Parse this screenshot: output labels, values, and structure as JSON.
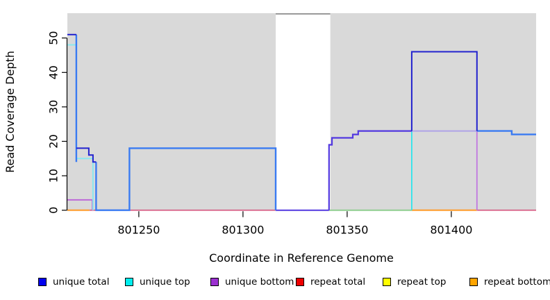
{
  "chart_data": {
    "type": "step-line-coverage",
    "title": "",
    "xlabel": "Coordinate in Reference Genome",
    "ylabel": "Read Coverage Depth",
    "xlim": [
      801215.7,
      801440.7
    ],
    "ylim": [
      0,
      57.2
    ],
    "x_ticks": [
      801250,
      801300,
      801350,
      801400
    ],
    "x_tick_labels": [
      "801250",
      "801300",
      "801350",
      "801400"
    ],
    "y_ticks": [
      0,
      10,
      20,
      30,
      40,
      50
    ],
    "y_tick_labels": [
      "0",
      "10",
      "20",
      "30",
      "40",
      "50"
    ],
    "grid": false,
    "legend_position": "bottom",
    "background_regions": [
      {
        "name": "covered-region-left",
        "x1": 801215.7,
        "x2": 801315.7,
        "color": "#D9D9D9"
      },
      {
        "name": "covered-region-right",
        "x1": 801341.9,
        "x2": 801440.7,
        "color": "#D9D9D9"
      },
      {
        "name": "alignment-gap",
        "x1": 801315.7,
        "x2": 801341.9,
        "color": "#FFFFFF",
        "top_bar_color": "#999999"
      }
    ],
    "legend": [
      {
        "label": "unique total",
        "color": "#0000EE"
      },
      {
        "label": "unique top",
        "color": "#00EEEE"
      },
      {
        "label": "unique bottom",
        "color": "#9B30D0"
      },
      {
        "label": "repeat total",
        "color": "#EE0000"
      },
      {
        "label": "repeat top",
        "color": "#FFFF00"
      },
      {
        "label": "repeat bottom",
        "color": "#FFA500"
      }
    ],
    "series": [
      {
        "name": "unique total",
        "steps": [
          [
            801216,
            51
          ],
          [
            801220,
            18
          ],
          [
            801226,
            16
          ],
          [
            801228,
            14
          ],
          [
            801229,
            0
          ],
          [
            801245,
            18
          ],
          [
            801316,
            0
          ],
          [
            801341,
            19
          ],
          [
            801343,
            21
          ],
          [
            801353,
            22
          ],
          [
            801355,
            23
          ],
          [
            801381,
            46
          ],
          [
            801412,
            23
          ],
          [
            801429,
            22
          ],
          [
            801441,
            22
          ]
        ]
      },
      {
        "name": "unique top",
        "steps": [
          [
            801216,
            48
          ],
          [
            801220,
            15
          ],
          [
            801228,
            0
          ],
          [
            801381,
            23
          ],
          [
            801412,
            0
          ]
        ]
      },
      {
        "name": "unique bottom",
        "steps": [
          [
            801216,
            3
          ],
          [
            801228,
            0
          ],
          [
            801341,
            19
          ],
          [
            801343,
            21
          ],
          [
            801353,
            22
          ],
          [
            801355,
            23
          ],
          [
            801412,
            0
          ]
        ]
      },
      {
        "name": "repeat total",
        "steps": [
          [
            801216,
            0
          ],
          [
            801441,
            0
          ]
        ]
      },
      {
        "name": "repeat top",
        "steps": [
          [
            801216,
            0
          ],
          [
            801441,
            0
          ]
        ]
      },
      {
        "name": "repeat bottom",
        "steps": [
          [
            801216,
            0
          ],
          [
            801441,
            0
          ]
        ]
      }
    ],
    "rendered_segments": [
      {
        "name": "repeat-total-line-mid",
        "color": "#D4547E",
        "width": 1.6,
        "points": [
          [
            801226.3,
            0
          ],
          [
            801315.7,
            0
          ]
        ]
      },
      {
        "name": "repeat-total-line-right",
        "color": "#D4547E",
        "width": 1.6,
        "points": [
          [
            801412.3,
            0
          ],
          [
            801440.7,
            0
          ]
        ]
      },
      {
        "name": "top-repeat-overlap-zero",
        "color": "#8FCD8F",
        "width": 2,
        "points": [
          [
            801341.3,
            0
          ],
          [
            801381,
            0
          ]
        ]
      },
      {
        "name": "repeat-bottom-left",
        "color": "#FF9D2E",
        "width": 2.2,
        "points": [
          [
            801215.7,
            0
          ],
          [
            801226.3,
            0
          ]
        ]
      },
      {
        "name": "repeat-bottom-right",
        "color": "#FF9D2E",
        "width": 2.2,
        "points": [
          [
            801381,
            0
          ],
          [
            801412.3,
            0
          ]
        ]
      },
      {
        "name": "unique-bottom-left-box",
        "color": "#BB62D8",
        "width": 1.8,
        "points": [
          [
            801215.7,
            3
          ],
          [
            801227.7,
            3
          ],
          [
            801227.7,
            0
          ]
        ]
      },
      {
        "name": "unique-bottom-right-drop",
        "color": "#C077E0",
        "width": 1.8,
        "points": [
          [
            801412.3,
            23
          ],
          [
            801412.3,
            0
          ]
        ]
      },
      {
        "name": "unique-top-48",
        "color": "#8AE8EF",
        "width": 2,
        "points": [
          [
            801215.7,
            48
          ],
          [
            801220,
            48
          ]
        ]
      },
      {
        "name": "unique-top-15",
        "color": "#8AE8EF",
        "width": 2,
        "points": [
          [
            801220,
            15
          ],
          [
            801228,
            15
          ],
          [
            801228,
            0
          ]
        ]
      },
      {
        "name": "unique-top-rise",
        "color": "#2EE4EC",
        "width": 1.8,
        "points": [
          [
            801381,
            0
          ],
          [
            801381,
            23
          ]
        ]
      },
      {
        "name": "top-bottom-overlap-23",
        "color": "#AFA3E8",
        "width": 2,
        "points": [
          [
            801381,
            23
          ],
          [
            801412.3,
            23
          ]
        ]
      },
      {
        "name": "total-bottom-overlap-gap0",
        "color": "#5238E0",
        "width": 2,
        "points": [
          [
            801315.7,
            0
          ],
          [
            801341.3,
            0
          ]
        ]
      },
      {
        "name": "total-bottom-overlap-rise",
        "color": "#5238E0",
        "width": 2.2,
        "points": [
          [
            801341.3,
            0
          ],
          [
            801341.3,
            19
          ],
          [
            801342.7,
            19
          ],
          [
            801342.7,
            21
          ],
          [
            801352.7,
            21
          ],
          [
            801352.7,
            22
          ],
          [
            801355.3,
            22
          ],
          [
            801355.3,
            23
          ],
          [
            801381,
            23
          ]
        ]
      },
      {
        "name": "total-top-overlap-dropL",
        "color": "#3A7BF2",
        "width": 2.4,
        "points": [
          [
            801220,
            51
          ],
          [
            801220,
            14
          ]
        ]
      },
      {
        "name": "total-top-overlap-block",
        "color": "#3A7BF2",
        "width": 2.4,
        "points": [
          [
            801229.5,
            14
          ],
          [
            801229.5,
            0
          ],
          [
            801245.5,
            0
          ],
          [
            801245.5,
            18
          ],
          [
            801315.7,
            18
          ],
          [
            801315.7,
            0
          ]
        ]
      },
      {
        "name": "total-top-overlap-right",
        "color": "#3A7BF2",
        "width": 2.4,
        "points": [
          [
            801412.3,
            23
          ],
          [
            801429,
            23
          ],
          [
            801429,
            22
          ],
          [
            801440.7,
            22
          ]
        ]
      },
      {
        "name": "unique-total-51",
        "color": "#2121CE",
        "width": 2,
        "points": [
          [
            801215.7,
            51
          ],
          [
            801220,
            51
          ]
        ]
      },
      {
        "name": "unique-total-steps",
        "color": "#2121CE",
        "width": 2,
        "points": [
          [
            801220,
            18
          ],
          [
            801226,
            18
          ],
          [
            801226,
            16
          ],
          [
            801228,
            16
          ],
          [
            801228,
            14
          ],
          [
            801229.5,
            14
          ]
        ]
      },
      {
        "name": "unique-total-46-box",
        "color": "#2121CE",
        "width": 2,
        "points": [
          [
            801381,
            23
          ],
          [
            801381,
            46
          ],
          [
            801412.3,
            46
          ],
          [
            801412.3,
            23
          ]
        ]
      }
    ]
  }
}
